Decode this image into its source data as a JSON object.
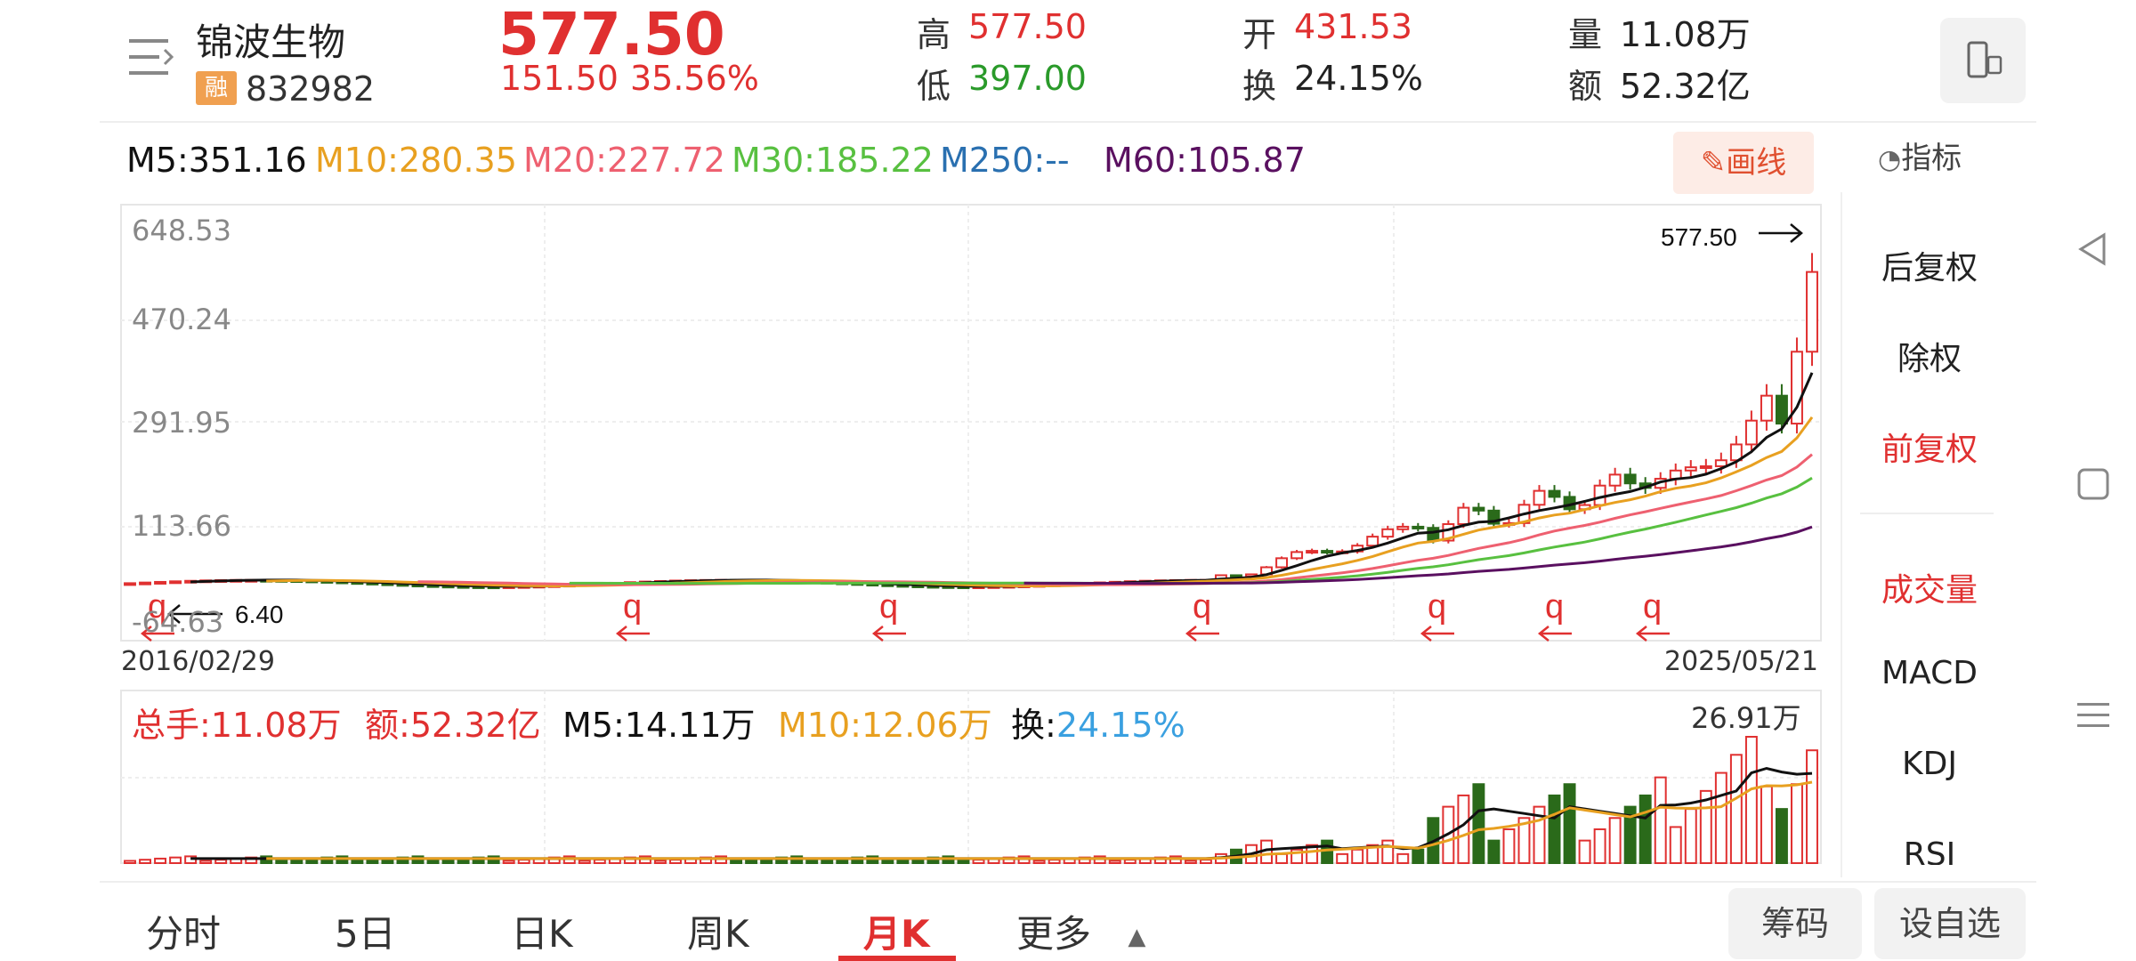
{
  "header": {
    "stock_name": "锦波生物",
    "rong_badge": "融",
    "stock_code": "832982",
    "price": "577.50",
    "change": "151.50",
    "change_pct": "35.56%",
    "high_label": "高",
    "high_value": "577.50",
    "low_label": "低",
    "low_value": "397.00",
    "open_label": "开",
    "open_value": "431.53",
    "turnover_label": "换",
    "turnover_value": "24.15%",
    "volume_label": "量",
    "volume_value": "11.08万",
    "amount_label": "额",
    "amount_value": "52.32亿"
  },
  "ma_bar": {
    "m5": "M5:351.16",
    "m10": "M10:280.35",
    "m20": "M20:227.72",
    "m30": "M30:185.22",
    "m250": "M250:--",
    "m60": "M60:105.87",
    "draw_button": "✎画线",
    "indicator_button": "指标"
  },
  "price_chart": {
    "y_labels": [
      "648.53",
      "470.24",
      "291.95",
      "113.66",
      "-64.63"
    ],
    "start_date": "2016/02/29",
    "end_date": "2025/05/21",
    "max_annotation": "577.50",
    "min_annotation": "6.40",
    "marker_glyph": "q"
  },
  "volume_bar": {
    "total_label": "总手:",
    "total_value": "11.08万",
    "amount_label": "额:",
    "amount_value": "52.32亿",
    "m5": "M5:14.11万",
    "m10": "M10:12.06万",
    "turnover_label": "换:",
    "turnover_value": "24.15%",
    "max_label": "26.91万"
  },
  "right_panel": {
    "items": [
      "后复权",
      "除权",
      "前复权",
      "成交量",
      "MACD",
      "KDJ",
      "RSI"
    ]
  },
  "tabs": [
    "分时",
    "5日",
    "日K",
    "周K",
    "月K",
    "更多"
  ],
  "pill_buttons": [
    "筹码",
    "设自选"
  ],
  "colors": {
    "up": "#e03030",
    "down": "#2a6a1a",
    "m5": "#111111",
    "m10": "#e8a020",
    "m20": "#ee6070",
    "m30": "#58c040",
    "m250": "#2a70b0",
    "m60": "#5a1060"
  },
  "chart_data": {
    "type": "candlestick",
    "x_range": [
      "2016/02/29",
      "2025/05/21"
    ],
    "y_ticks": [
      648.53,
      470.24,
      291.95,
      113.66,
      -64.63
    ],
    "last_close": 577.5,
    "period_low": 6.4,
    "volume_max": "26.91万"
  }
}
